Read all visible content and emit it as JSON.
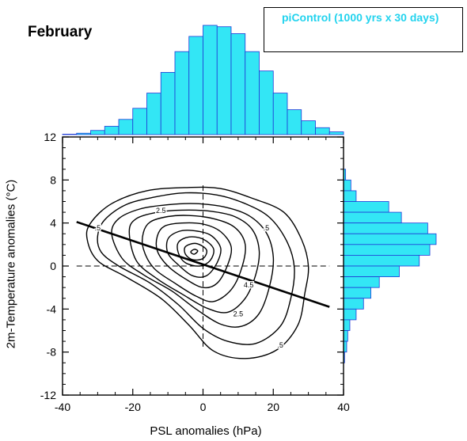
{
  "title": "February",
  "legend": {
    "label": "piControl (1000 yrs x 30 days)"
  },
  "colors": {
    "histogram_fill": "#33e6f5",
    "histogram_edge": "#1f3ad6",
    "legend_text": "#22d3ee"
  },
  "chart_data": {
    "type": "contour",
    "xlabel": "PSL anomalies (hPa)",
    "ylabel": "2m-Temperature anomalies (°C)",
    "xlim": [
      -40,
      40
    ],
    "ylim": [
      -12,
      12
    ],
    "xticks": [
      -40,
      -20,
      0,
      20,
      40
    ],
    "yticks": [
      12,
      8,
      4,
      0,
      -4,
      -8,
      -12
    ],
    "reference_lines": {
      "x": 0,
      "y": 0,
      "style": "dashed"
    },
    "regression_line": {
      "x": [
        -36,
        36
      ],
      "y": [
        4.1,
        -3.8
      ]
    },
    "contour_labels": [
      {
        "text": ".5",
        "x": -30,
        "y": 3.5
      },
      {
        "text": ".5",
        "x": 18,
        "y": 3.5
      },
      {
        "text": "2.5",
        "x": -12,
        "y": 5.1
      },
      {
        "text": "2.5",
        "x": 10,
        "y": -4.5
      },
      {
        "text": "4.5",
        "x": 13,
        "y": -1.8
      },
      {
        "text": ".5",
        "x": 22,
        "y": -7.4
      }
    ],
    "contours": [
      {
        "level": 0.5,
        "points": [
          [
            -33,
            2.5
          ],
          [
            -32,
            4
          ],
          [
            -26,
            5.8
          ],
          [
            -16,
            7
          ],
          [
            -4,
            7.3
          ],
          [
            5,
            7.2
          ],
          [
            14,
            6.3
          ],
          [
            23,
            5
          ],
          [
            28,
            2.5
          ],
          [
            30,
            0
          ],
          [
            29,
            -2.5
          ],
          [
            27,
            -5.5
          ],
          [
            21,
            -7.8
          ],
          [
            12,
            -8.6
          ],
          [
            3,
            -7.9
          ],
          [
            -4,
            -5.5
          ],
          [
            -12,
            -3
          ],
          [
            -22,
            -1
          ],
          [
            -30,
            0.5
          ]
        ]
      },
      {
        "level": 1.0,
        "points": [
          [
            -30,
            2.8
          ],
          [
            -28,
            4.3
          ],
          [
            -22,
            5.7
          ],
          [
            -14,
            6.4
          ],
          [
            -5,
            6.8
          ],
          [
            4,
            6.6
          ],
          [
            12,
            5.8
          ],
          [
            19,
            4.5
          ],
          [
            24,
            2.2
          ],
          [
            26,
            -0.2
          ],
          [
            25,
            -3
          ],
          [
            22,
            -5.6
          ],
          [
            15,
            -7.2
          ],
          [
            7,
            -7
          ],
          [
            0,
            -5.8
          ],
          [
            -7,
            -3.6
          ],
          [
            -15,
            -1.6
          ],
          [
            -24,
            0
          ],
          [
            -29,
            1.3
          ]
        ]
      },
      {
        "level": 1.5,
        "points": [
          [
            -26,
            3
          ],
          [
            -24,
            4.4
          ],
          [
            -18,
            5.3
          ],
          [
            -10,
            5.7
          ],
          [
            -2,
            5.8
          ],
          [
            6,
            5.5
          ],
          [
            13,
            4.7
          ],
          [
            18,
            3.1
          ],
          [
            20,
            0.8
          ],
          [
            19,
            -1.8
          ],
          [
            16,
            -4.4
          ],
          [
            11,
            -5.6
          ],
          [
            5,
            -5.4
          ],
          [
            -2,
            -4
          ],
          [
            -9,
            -2.3
          ],
          [
            -17,
            -0.8
          ],
          [
            -23,
            0.7
          ]
        ]
      },
      {
        "level": 2.0,
        "points": [
          [
            -21,
            3.2
          ],
          [
            -19,
            4.4
          ],
          [
            -13,
            5
          ],
          [
            -6,
            5.2
          ],
          [
            2,
            5.1
          ],
          [
            9,
            4.6
          ],
          [
            14,
            3.4
          ],
          [
            16,
            1.4
          ],
          [
            15,
            -0.8
          ],
          [
            12,
            -3
          ],
          [
            7,
            -4.3
          ],
          [
            1,
            -3.9
          ],
          [
            -6,
            -2.6
          ],
          [
            -13,
            -1.2
          ],
          [
            -19,
            0.5
          ]
        ]
      },
      {
        "level": 2.5,
        "points": [
          [
            -17,
            3.1
          ],
          [
            -15,
            4.1
          ],
          [
            -10,
            4.6
          ],
          [
            -4,
            4.7
          ],
          [
            3,
            4.4
          ],
          [
            9,
            3.6
          ],
          [
            12,
            2
          ],
          [
            11,
            -0.2
          ],
          [
            8,
            -2.2
          ],
          [
            3,
            -3.3
          ],
          [
            -2,
            -2.8
          ],
          [
            -8,
            -1.6
          ],
          [
            -14,
            -0.2
          ],
          [
            -17,
            1.6
          ]
        ]
      },
      {
        "level": 3.0,
        "points": [
          [
            -13,
            2.8
          ],
          [
            -11,
            3.7
          ],
          [
            -6,
            4
          ],
          [
            0,
            3.9
          ],
          [
            5,
            3.2
          ],
          [
            8,
            1.8
          ],
          [
            7,
            0.1
          ],
          [
            4,
            -1.6
          ],
          [
            0,
            -2
          ],
          [
            -5,
            -1.2
          ],
          [
            -10,
            0
          ],
          [
            -13,
            1.4
          ]
        ]
      },
      {
        "level": 3.5,
        "points": [
          [
            -10,
            2.5
          ],
          [
            -7,
            3.2
          ],
          [
            -3,
            3.3
          ],
          [
            2,
            2.9
          ],
          [
            5,
            1.7
          ],
          [
            4,
            0.3
          ],
          [
            1,
            -0.9
          ],
          [
            -3,
            -0.9
          ],
          [
            -7,
            0.1
          ],
          [
            -10,
            1.2
          ]
        ]
      },
      {
        "level": 4.0,
        "points": [
          [
            -7,
            2.2
          ],
          [
            -4,
            2.7
          ],
          [
            0,
            2.5
          ],
          [
            3,
            1.6
          ],
          [
            2,
            0.5
          ],
          [
            -1,
            0
          ],
          [
            -5,
            0.3
          ],
          [
            -7,
            1.2
          ]
        ]
      },
      {
        "level": 4.5,
        "points": [
          [
            -5,
            1.8
          ],
          [
            -2,
            2.1
          ],
          [
            1,
            1.5
          ],
          [
            0,
            0.7
          ],
          [
            -3,
            0.6
          ],
          [
            -5,
            1.1
          ]
        ]
      },
      {
        "level": 5.0,
        "points": [
          [
            -3.5,
            1.3
          ],
          [
            -2.5,
            1.55
          ],
          [
            -1.5,
            1.4
          ],
          [
            -2.5,
            1.1
          ]
        ]
      }
    ],
    "psl_histogram": {
      "bin_width": 4,
      "bin_starts": [
        -40,
        -36,
        -32,
        -28,
        -24,
        -20,
        -16,
        -12,
        -8,
        -4,
        0,
        4,
        8,
        12,
        16,
        20,
        24,
        28,
        32,
        36
      ],
      "counts": [
        0.3,
        1,
        3,
        6,
        11,
        19,
        30,
        45,
        60,
        71,
        79,
        78,
        73,
        60,
        46,
        30,
        18,
        10,
        5,
        2
      ]
    },
    "t2m_histogram": {
      "bin_height": 1,
      "bin_starts": [
        8,
        7,
        6,
        5,
        4,
        3,
        2,
        1,
        0,
        -1,
        -2,
        -3,
        -4,
        -5,
        -6,
        -7,
        -8,
        -9,
        -10
      ],
      "counts": [
        2,
        7,
        12,
        43,
        55,
        80,
        88,
        82,
        72,
        53,
        34,
        26,
        19,
        12,
        6,
        4,
        3,
        1,
        0
      ]
    }
  }
}
